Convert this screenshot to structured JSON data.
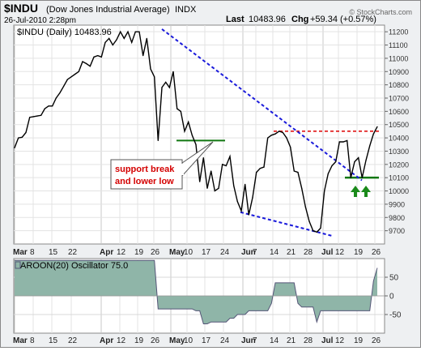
{
  "header": {
    "symbol": "$INDU",
    "name": "(Dow Jones Industrial Average)",
    "exchange": "INDX",
    "date": "26-Jul-2010 2:28pm",
    "last_label": "Last",
    "last_value": "10483.96",
    "chg_label": "Chg",
    "chg_value": "+59.34 (+0.57%)",
    "watermark": "© StockCharts.com"
  },
  "annotations": {
    "support_text_1": "support break",
    "support_text_2": "and lower low"
  },
  "colors": {
    "price_line": "#000000",
    "trend_line": "#1a1adb",
    "resistance_line": "#dd0000",
    "support_line": "#117711",
    "arrow": "#1a8a1a",
    "aroon_fill": "#8fb5a8",
    "aroon_line": "#555577",
    "panel_bg": "#ffffff"
  },
  "chart_data": [
    {
      "type": "line",
      "title": "$INDU (Daily) 10483.96",
      "legend": "top-left",
      "grid": true,
      "x_tick_labels": [
        "Mar",
        "8",
        "15",
        "22",
        "Apr",
        "12",
        "19",
        "26",
        "May",
        "10",
        "17",
        "24",
        "Jun",
        "7",
        "14",
        "21",
        "28",
        "Jul",
        "12",
        "19",
        "26"
      ],
      "ylim": [
        9600,
        11250
      ],
      "y_ticks": [
        9700,
        9800,
        9900,
        10000,
        10100,
        10200,
        10300,
        10400,
        10500,
        10600,
        10700,
        10800,
        10900,
        11000,
        11100,
        11200
      ],
      "series": [
        {
          "name": "$INDU (Daily) 10483.96",
          "values": [
            10325,
            10400,
            10405,
            10440,
            10555,
            10560,
            10565,
            10570,
            10620,
            10640,
            10640,
            10700,
            10740,
            10790,
            10840,
            10860,
            10880,
            10900,
            10975,
            10960,
            10940,
            11010,
            11020,
            11010,
            11120,
            11150,
            11100,
            11140,
            11200,
            11150,
            11200,
            11120,
            11200,
            11200,
            11020,
            11150,
            10920,
            10860,
            10380,
            10780,
            10820,
            10780,
            10900,
            10620,
            10600,
            10450,
            10520,
            10420,
            10350,
            10070,
            10250,
            10020,
            10150,
            10000,
            10020,
            10200,
            10190,
            10260,
            10040,
            9920,
            9850,
            10050,
            9820,
            9950,
            10140,
            10170,
            10180,
            10400,
            10420,
            10430,
            10450,
            10440,
            10400,
            10330,
            10150,
            10140,
            10020,
            9880,
            9770,
            9700,
            9690,
            9720,
            10000,
            10130,
            10190,
            10220,
            10370,
            10370,
            10380,
            10100,
            10220,
            10250,
            10100,
            10230,
            10340,
            10430,
            10484
          ]
        }
      ],
      "overlays": {
        "resistance_level": 10450,
        "support_level": 10380,
        "late_support_level": 10100,
        "trend_line_upper": [
          {
            "x": "Apr 27",
            "y": 11220
          },
          {
            "x": "Jul 21",
            "y": 10080
          }
        ],
        "trend_line_lower": [
          {
            "x": "Jun 1",
            "y": 9840
          },
          {
            "x": "Jul 6",
            "y": 9660
          }
        ]
      }
    },
    {
      "type": "area",
      "title": "AROON(20) Oscillator 75.0",
      "legend": "top-left",
      "grid": true,
      "x_tick_labels": [
        "Mar",
        "8",
        "15",
        "22",
        "Apr",
        "12",
        "19",
        "26",
        "May",
        "10",
        "17",
        "24",
        "Jun",
        "7",
        "14",
        "21",
        "28",
        "Jul",
        "12",
        "19",
        "26"
      ],
      "ylim": [
        -100,
        100
      ],
      "y_ticks": [
        -50,
        0,
        50
      ],
      "series": [
        {
          "name": "AROON(20) Oscillator 75.0",
          "values": [
            95,
            95,
            95,
            95,
            95,
            95,
            95,
            95,
            95,
            95,
            95,
            95,
            95,
            95,
            95,
            95,
            95,
            95,
            95,
            95,
            95,
            95,
            95,
            95,
            95,
            95,
            95,
            95,
            95,
            95,
            95,
            95,
            95,
            95,
            95,
            95,
            95,
            95,
            -35,
            -35,
            -35,
            -35,
            -35,
            -35,
            -35,
            -35,
            -35,
            -35,
            -40,
            -40,
            -75,
            -75,
            -70,
            -70,
            -70,
            -70,
            -70,
            -60,
            -60,
            -50,
            -50,
            -50,
            -40,
            -40,
            -40,
            -40,
            -40,
            -40,
            -20,
            35,
            35,
            35,
            35,
            35,
            35,
            -20,
            -30,
            -30,
            -30,
            -30,
            -70,
            -40,
            -40,
            -40,
            -40,
            -40,
            -40,
            -40,
            -40,
            -40,
            -40,
            -40,
            -40,
            -40,
            -40,
            40,
            75
          ]
        }
      ]
    }
  ]
}
